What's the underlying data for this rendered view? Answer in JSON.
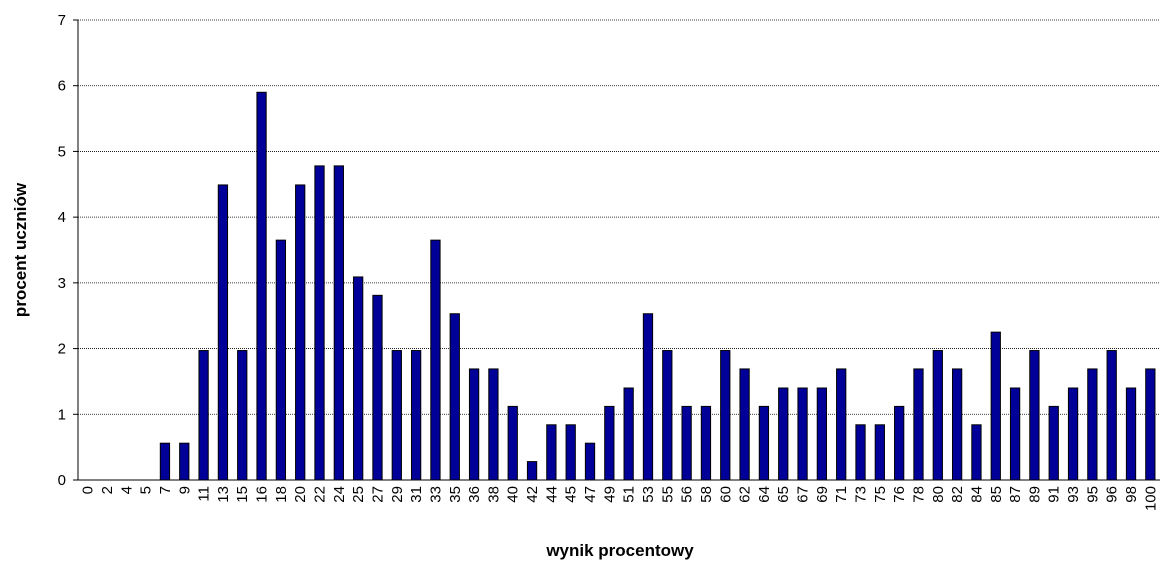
{
  "chart_data": {
    "type": "bar",
    "xlabel": "wynik procentowy",
    "ylabel": "procent uczniów",
    "categories": [
      "0",
      "2",
      "4",
      "5",
      "7",
      "9",
      "11",
      "13",
      "15",
      "16",
      "18",
      "20",
      "22",
      "24",
      "25",
      "27",
      "29",
      "31",
      "33",
      "35",
      "36",
      "38",
      "40",
      "42",
      "44",
      "45",
      "47",
      "49",
      "51",
      "53",
      "55",
      "56",
      "58",
      "60",
      "62",
      "64",
      "65",
      "67",
      "69",
      "71",
      "73",
      "75",
      "76",
      "78",
      "80",
      "82",
      "84",
      "85",
      "87",
      "89",
      "91",
      "93",
      "95",
      "96",
      "98",
      "100"
    ],
    "values": [
      0,
      0,
      0,
      0,
      0.56,
      0.56,
      1.97,
      4.49,
      1.97,
      5.9,
      3.65,
      4.49,
      4.78,
      4.78,
      3.09,
      2.81,
      1.97,
      1.97,
      3.65,
      2.53,
      1.69,
      1.69,
      1.12,
      0.28,
      0.84,
      0.84,
      0.56,
      1.12,
      1.4,
      2.53,
      1.97,
      1.12,
      1.12,
      1.97,
      1.69,
      1.12,
      1.4,
      1.4,
      1.4,
      1.69,
      0.84,
      0.84,
      1.12,
      1.69,
      1.97,
      1.69,
      0.84,
      2.25,
      1.4,
      1.97,
      1.12,
      1.4,
      1.69,
      1.97,
      1.4,
      1.69
    ],
    "color": "#000099",
    "ylim": [
      0,
      7
    ],
    "yticks": [
      0,
      1,
      2,
      3,
      4,
      5,
      6,
      7
    ],
    "grid": true
  }
}
